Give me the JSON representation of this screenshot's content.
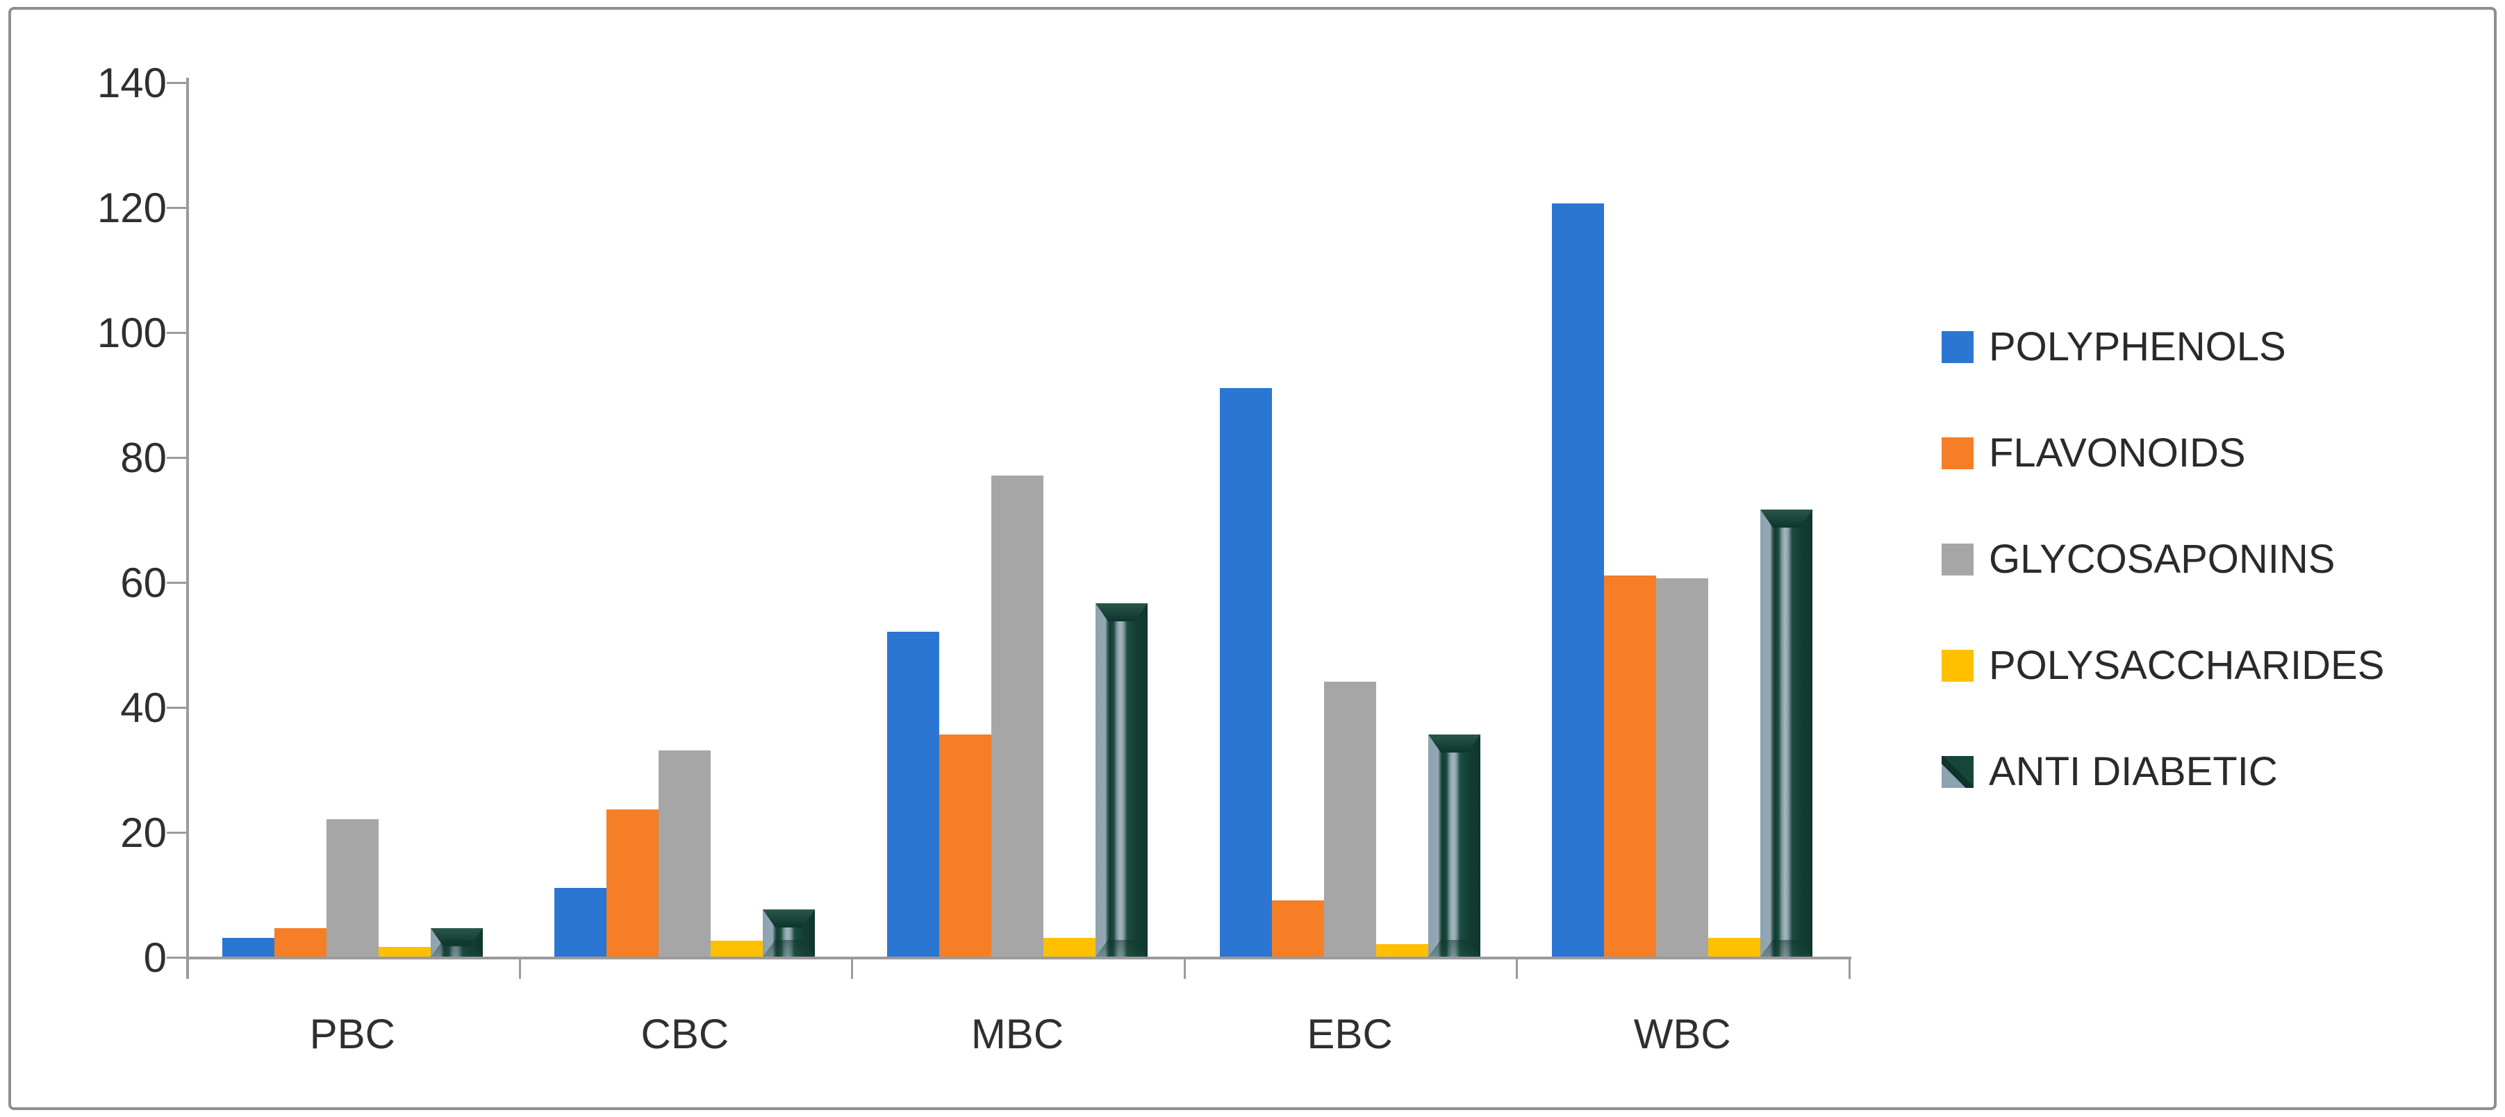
{
  "chart_data": {
    "type": "bar",
    "title": "",
    "xlabel": "",
    "ylabel": "",
    "categories": [
      "PBC",
      "CBC",
      "MBC",
      "EBC",
      "WBC"
    ],
    "series": [
      {
        "name": "POLYPHENOLS",
        "color": "#2b76d2",
        "values": [
          3,
          11,
          52,
          91,
          120.5
        ]
      },
      {
        "name": "FLAVONOIDS",
        "color": "#f57e27",
        "values": [
          4.5,
          23.5,
          35.5,
          9,
          61
        ]
      },
      {
        "name": "GLYCOSAPONINS",
        "color": "#a6a6a6",
        "values": [
          22,
          33,
          77,
          44,
          60.5
        ]
      },
      {
        "name": "POLYSACCHARIDES",
        "color": "#ffc000",
        "values": [
          1.5,
          2.5,
          3,
          2,
          3
        ]
      },
      {
        "name": "ANTI DIABETIC",
        "color": "#17453a",
        "values": [
          4.5,
          7.5,
          56.5,
          35.5,
          71.5
        ],
        "style": "bevel-3d"
      }
    ],
    "ylim": [
      0,
      140
    ],
    "ytick_step": 20,
    "yticks": [
      "0",
      "20",
      "40",
      "60",
      "80",
      "100",
      "120",
      "140"
    ],
    "grid": false,
    "legend_position": "right"
  },
  "colors": {
    "axis": "#9b9b9b",
    "text": "#2f2f2f",
    "border": "#8f8f8f",
    "background": "#ffffff"
  }
}
